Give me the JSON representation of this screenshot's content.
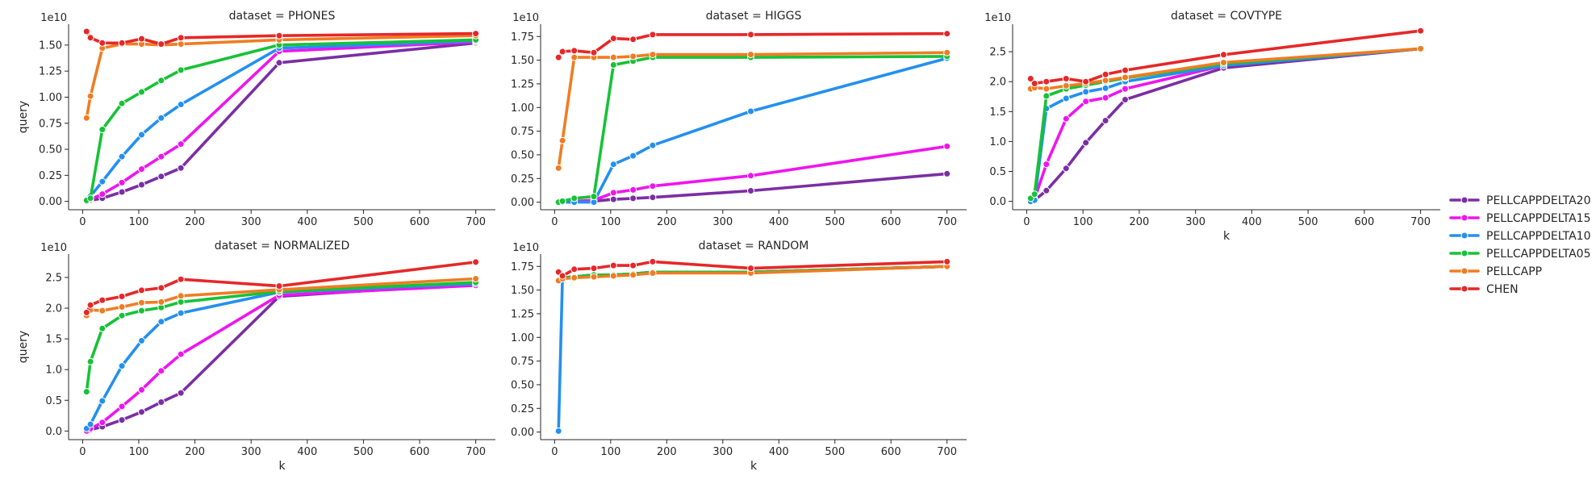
{
  "chart_data": [
    {
      "type": "line",
      "title": "dataset = PHONES",
      "xlabel": "",
      "ylabel": "query",
      "y_exponent_label": "1e10",
      "xlim": [
        -25,
        735
      ],
      "ylim": [
        -0.08,
        1.7
      ],
      "x_ticks": [
        0,
        100,
        200,
        300,
        400,
        500,
        600,
        700
      ],
      "y_ticks": [
        0.0,
        0.25,
        0.5,
        0.75,
        1.0,
        1.25,
        1.5
      ],
      "y_tick_labels": [
        "0.00",
        "0.25",
        "0.50",
        "0.75",
        "1.00",
        "1.25",
        "1.50"
      ],
      "series": [
        {
          "name": "PELLCAPPDELTA20",
          "x": [
            7,
            14,
            35,
            70,
            105,
            140,
            175,
            350,
            700
          ],
          "y": [
            0.0,
            0.01,
            0.03,
            0.09,
            0.16,
            0.24,
            0.32,
            1.33,
            1.52
          ]
        },
        {
          "name": "PELLCAPPDELTA15",
          "x": [
            7,
            14,
            35,
            70,
            105,
            140,
            175,
            350,
            700
          ],
          "y": [
            0.0,
            0.02,
            0.07,
            0.18,
            0.31,
            0.43,
            0.55,
            1.44,
            1.53
          ]
        },
        {
          "name": "PELLCAPPDELTA10",
          "x": [
            7,
            14,
            35,
            70,
            105,
            140,
            175,
            350,
            700
          ],
          "y": [
            0.0,
            0.05,
            0.19,
            0.43,
            0.64,
            0.8,
            0.93,
            1.47,
            1.54
          ]
        },
        {
          "name": "PELLCAPPDELTA05",
          "x": [
            7,
            14,
            35,
            70,
            105,
            140,
            175,
            350,
            700
          ],
          "y": [
            0.01,
            0.03,
            0.69,
            0.94,
            1.05,
            1.16,
            1.26,
            1.5,
            1.55
          ]
        },
        {
          "name": "PELLCAPP",
          "x": [
            7,
            14,
            35,
            70,
            105,
            140,
            175,
            350,
            700
          ],
          "y": [
            0.8,
            1.01,
            1.47,
            1.51,
            1.51,
            1.5,
            1.51,
            1.55,
            1.59
          ]
        },
        {
          "name": "CHEN",
          "x": [
            7,
            14,
            35,
            70,
            105,
            140,
            175,
            350,
            700
          ],
          "y": [
            1.63,
            1.57,
            1.52,
            1.52,
            1.56,
            1.51,
            1.57,
            1.59,
            1.61
          ]
        }
      ]
    },
    {
      "type": "line",
      "title": "dataset = HIGGS",
      "xlabel": "",
      "ylabel": "",
      "y_exponent_label": "1e10",
      "xlim": [
        -25,
        735
      ],
      "ylim": [
        -0.08,
        1.88
      ],
      "x_ticks": [
        0,
        100,
        200,
        300,
        400,
        500,
        600,
        700
      ],
      "y_ticks": [
        0.0,
        0.25,
        0.5,
        0.75,
        1.0,
        1.25,
        1.5,
        1.75
      ],
      "y_tick_labels": [
        "0.00",
        "0.25",
        "0.50",
        "0.75",
        "1.00",
        "1.25",
        "1.50",
        "1.75"
      ],
      "series": [
        {
          "name": "PELLCAPPDELTA20",
          "x": [
            7,
            14,
            35,
            70,
            105,
            140,
            175,
            350,
            700
          ],
          "y": [
            0.0,
            0.0,
            0.0,
            0.01,
            0.03,
            0.04,
            0.05,
            0.12,
            0.3
          ]
        },
        {
          "name": "PELLCAPPDELTA15",
          "x": [
            7,
            14,
            35,
            70,
            105,
            140,
            175,
            350,
            700
          ],
          "y": [
            0.0,
            0.0,
            0.01,
            0.02,
            0.1,
            0.13,
            0.17,
            0.28,
            0.59
          ]
        },
        {
          "name": "PELLCAPPDELTA10",
          "x": [
            7,
            14,
            35,
            70,
            105,
            140,
            175,
            350,
            700
          ],
          "y": [
            0.0,
            0.0,
            0.0,
            0.0,
            0.4,
            0.49,
            0.6,
            0.96,
            1.52
          ]
        },
        {
          "name": "PELLCAPPDELTA05",
          "x": [
            7,
            14,
            35,
            70,
            105,
            140,
            175,
            350,
            700
          ],
          "y": [
            0.0,
            0.01,
            0.04,
            0.06,
            1.45,
            1.49,
            1.53,
            1.53,
            1.54
          ]
        },
        {
          "name": "PELLCAPP",
          "x": [
            7,
            14,
            35,
            70,
            105,
            140,
            175,
            350,
            700
          ],
          "y": [
            0.36,
            0.65,
            1.53,
            1.53,
            1.53,
            1.54,
            1.56,
            1.56,
            1.58
          ]
        },
        {
          "name": "CHEN",
          "x": [
            7,
            14,
            35,
            70,
            105,
            140,
            175,
            350,
            700
          ],
          "y": [
            1.53,
            1.59,
            1.6,
            1.58,
            1.73,
            1.72,
            1.77,
            1.77,
            1.78
          ]
        }
      ]
    },
    {
      "type": "line",
      "title": "dataset = COVTYPE",
      "xlabel": "k",
      "ylabel": "",
      "y_exponent_label": "1e10",
      "xlim": [
        -25,
        735
      ],
      "ylim": [
        -0.14,
        2.96
      ],
      "x_ticks": [
        0,
        100,
        200,
        300,
        400,
        500,
        600,
        700
      ],
      "y_ticks": [
        0.0,
        0.5,
        1.0,
        1.5,
        2.0,
        2.5
      ],
      "y_tick_labels": [
        "0.0",
        "0.5",
        "1.0",
        "1.5",
        "2.0",
        "2.5"
      ],
      "series": [
        {
          "name": "PELLCAPPDELTA20",
          "x": [
            7,
            14,
            35,
            70,
            105,
            140,
            175,
            350,
            700
          ],
          "y": [
            0.0,
            0.02,
            0.18,
            0.55,
            0.98,
            1.35,
            1.7,
            2.23,
            2.55
          ]
        },
        {
          "name": "PELLCAPPDELTA15",
          "x": [
            7,
            14,
            35,
            70,
            105,
            140,
            175,
            350,
            700
          ],
          "y": [
            0.0,
            0.04,
            0.62,
            1.38,
            1.67,
            1.73,
            1.88,
            2.27,
            2.55
          ]
        },
        {
          "name": "PELLCAPPDELTA10",
          "x": [
            7,
            14,
            35,
            70,
            105,
            140,
            175,
            350,
            700
          ],
          "y": [
            0.0,
            0.02,
            1.55,
            1.72,
            1.83,
            1.89,
            2.0,
            2.27,
            2.55
          ]
        },
        {
          "name": "PELLCAPPDELTA05",
          "x": [
            7,
            14,
            35,
            70,
            105,
            140,
            175,
            350,
            700
          ],
          "y": [
            0.05,
            0.12,
            1.76,
            1.88,
            1.94,
            2.0,
            2.06,
            2.3,
            2.55
          ]
        },
        {
          "name": "PELLCAPP",
          "x": [
            7,
            14,
            35,
            70,
            105,
            140,
            175,
            350,
            700
          ],
          "y": [
            1.88,
            1.9,
            1.88,
            1.93,
            1.97,
            2.02,
            2.07,
            2.32,
            2.55
          ]
        },
        {
          "name": "CHEN",
          "x": [
            7,
            14,
            35,
            70,
            105,
            140,
            175,
            350,
            700
          ],
          "y": [
            2.05,
            1.97,
            2.0,
            2.05,
            2.0,
            2.12,
            2.19,
            2.45,
            2.85
          ]
        }
      ]
    },
    {
      "type": "line",
      "title": "dataset = NORMALIZED",
      "xlabel": "k",
      "ylabel": "query",
      "y_exponent_label": "1e10",
      "xlim": [
        -25,
        735
      ],
      "ylim": [
        -0.14,
        2.88
      ],
      "x_ticks": [
        0,
        100,
        200,
        300,
        400,
        500,
        600,
        700
      ],
      "y_ticks": [
        0.0,
        0.5,
        1.0,
        1.5,
        2.0,
        2.5
      ],
      "y_tick_labels": [
        "0.0",
        "0.5",
        "1.0",
        "1.5",
        "2.0",
        "2.5"
      ],
      "series": [
        {
          "name": "PELLCAPPDELTA20",
          "x": [
            7,
            14,
            35,
            70,
            105,
            140,
            175,
            350,
            700
          ],
          "y": [
            0.0,
            0.02,
            0.07,
            0.18,
            0.31,
            0.47,
            0.62,
            2.19,
            2.4
          ]
        },
        {
          "name": "PELLCAPPDELTA15",
          "x": [
            7,
            14,
            35,
            70,
            105,
            140,
            175,
            350,
            700
          ],
          "y": [
            0.0,
            0.04,
            0.14,
            0.4,
            0.67,
            0.98,
            1.25,
            2.21,
            2.37
          ]
        },
        {
          "name": "PELLCAPPDELTA10",
          "x": [
            7,
            14,
            35,
            70,
            105,
            140,
            175,
            350,
            700
          ],
          "y": [
            0.04,
            0.11,
            0.49,
            1.06,
            1.47,
            1.78,
            1.92,
            2.26,
            2.4
          ]
        },
        {
          "name": "PELLCAPPDELTA05",
          "x": [
            7,
            14,
            35,
            70,
            105,
            140,
            175,
            350,
            700
          ],
          "y": [
            0.64,
            1.13,
            1.67,
            1.88,
            1.96,
            2.01,
            2.1,
            2.27,
            2.42
          ]
        },
        {
          "name": "PELLCAPP",
          "x": [
            7,
            14,
            35,
            70,
            105,
            140,
            175,
            350,
            700
          ],
          "y": [
            1.88,
            1.97,
            1.96,
            2.02,
            2.09,
            2.1,
            2.2,
            2.3,
            2.48
          ]
        },
        {
          "name": "CHEN",
          "x": [
            7,
            14,
            35,
            70,
            105,
            140,
            175,
            350,
            700
          ],
          "y": [
            1.93,
            2.05,
            2.13,
            2.19,
            2.29,
            2.33,
            2.47,
            2.36,
            2.75
          ]
        }
      ]
    },
    {
      "type": "line",
      "title": "dataset = RANDOM",
      "xlabel": "k",
      "ylabel": "",
      "y_exponent_label": "1e10",
      "xlim": [
        -25,
        735
      ],
      "ylim": [
        -0.08,
        1.88
      ],
      "x_ticks": [
        0,
        100,
        200,
        300,
        400,
        500,
        600,
        700
      ],
      "y_ticks": [
        0.0,
        0.25,
        0.5,
        0.75,
        1.0,
        1.25,
        1.5,
        1.75
      ],
      "y_tick_labels": [
        "0.00",
        "0.25",
        "0.50",
        "0.75",
        "1.00",
        "1.25",
        "1.50",
        "1.75"
      ],
      "series": [
        {
          "name": "PELLCAPPDELTA20",
          "x": [
            7,
            14,
            35,
            70,
            105,
            140,
            175,
            350,
            700
          ],
          "y": [
            1.6,
            1.63,
            1.64,
            1.66,
            1.66,
            1.67,
            1.69,
            1.69,
            1.75
          ]
        },
        {
          "name": "PELLCAPPDELTA15",
          "x": [
            7,
            14,
            35,
            70,
            105,
            140,
            175,
            350,
            700
          ],
          "y": [
            1.6,
            1.63,
            1.64,
            1.66,
            1.66,
            1.67,
            1.69,
            1.69,
            1.75
          ]
        },
        {
          "name": "PELLCAPPDELTA10",
          "x": [
            7,
            14,
            35,
            70,
            105,
            140,
            175,
            350,
            700
          ],
          "y": [
            0.01,
            1.63,
            1.64,
            1.66,
            1.66,
            1.67,
            1.69,
            1.69,
            1.75
          ]
        },
        {
          "name": "PELLCAPPDELTA05",
          "x": [
            7,
            14,
            35,
            70,
            105,
            140,
            175,
            350,
            700
          ],
          "y": [
            1.6,
            1.63,
            1.64,
            1.66,
            1.66,
            1.67,
            1.69,
            1.69,
            1.75
          ]
        },
        {
          "name": "PELLCAPP",
          "x": [
            7,
            14,
            35,
            70,
            105,
            140,
            175,
            350,
            700
          ],
          "y": [
            1.6,
            1.62,
            1.63,
            1.64,
            1.65,
            1.66,
            1.68,
            1.68,
            1.75
          ]
        },
        {
          "name": "CHEN",
          "x": [
            7,
            14,
            35,
            70,
            105,
            140,
            175,
            350,
            700
          ],
          "y": [
            1.69,
            1.65,
            1.72,
            1.73,
            1.76,
            1.76,
            1.8,
            1.73,
            1.8
          ]
        }
      ]
    }
  ],
  "legend": {
    "placement": "right",
    "items": [
      {
        "name": "PELLCAPPDELTA20",
        "color": "#7b2ea3"
      },
      {
        "name": "PELLCAPPDELTA15",
        "color": "#ef14ef"
      },
      {
        "name": "PELLCAPPDELTA10",
        "color": "#2390f0"
      },
      {
        "name": "PELLCAPPDELTA05",
        "color": "#16c236"
      },
      {
        "name": "PELLCAPP",
        "color": "#f07c22"
      },
      {
        "name": "CHEN",
        "color": "#e62728"
      }
    ]
  }
}
